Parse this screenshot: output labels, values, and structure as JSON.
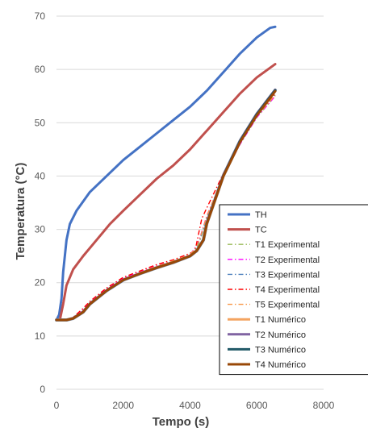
{
  "chart_data": {
    "type": "line",
    "title": "",
    "xlabel": "Tempo (s)",
    "ylabel": "Temperatura (°C)",
    "xlim": [
      0,
      8000
    ],
    "ylim": [
      0,
      70
    ],
    "xticks": [
      0,
      2000,
      4000,
      6000,
      8000
    ],
    "yticks": [
      0,
      10,
      20,
      30,
      40,
      50,
      60,
      70
    ],
    "grid": "horizontal",
    "legend_position": "right",
    "series": [
      {
        "name": "TH",
        "color": "#4472C4",
        "style": "solid",
        "width": 3,
        "points": [
          [
            0,
            13
          ],
          [
            80,
            14
          ],
          [
            150,
            17
          ],
          [
            200,
            22
          ],
          [
            300,
            28
          ],
          [
            400,
            31
          ],
          [
            600,
            33.5
          ],
          [
            1000,
            37
          ],
          [
            1500,
            40
          ],
          [
            2000,
            43
          ],
          [
            2500,
            45.5
          ],
          [
            3000,
            48
          ],
          [
            3500,
            50.5
          ],
          [
            4000,
            53
          ],
          [
            4500,
            56
          ],
          [
            5000,
            59.5
          ],
          [
            5500,
            63
          ],
          [
            6000,
            66
          ],
          [
            6400,
            67.8
          ],
          [
            6550,
            68
          ]
        ]
      },
      {
        "name": "TC",
        "color": "#C0504D",
        "style": "solid",
        "width": 3,
        "points": [
          [
            0,
            13
          ],
          [
            100,
            13
          ],
          [
            200,
            16
          ],
          [
            300,
            19.5
          ],
          [
            500,
            22.5
          ],
          [
            800,
            25
          ],
          [
            1200,
            28
          ],
          [
            1600,
            31
          ],
          [
            2000,
            33.5
          ],
          [
            2500,
            36.5
          ],
          [
            3000,
            39.5
          ],
          [
            3500,
            42
          ],
          [
            4000,
            45
          ],
          [
            4500,
            48.5
          ],
          [
            5000,
            52
          ],
          [
            5500,
            55.5
          ],
          [
            6000,
            58.5
          ],
          [
            6550,
            61
          ]
        ]
      },
      {
        "name": "T1 Experimental",
        "color": "#9BBB59",
        "style": "dashdot",
        "width": 1.4,
        "points": [
          [
            0,
            13
          ],
          [
            300,
            13
          ],
          [
            500,
            13.3
          ],
          [
            800,
            14.5
          ],
          [
            1000,
            16
          ],
          [
            1500,
            18.5
          ],
          [
            2000,
            20.5
          ],
          [
            2500,
            21.8
          ],
          [
            3000,
            23
          ],
          [
            3500,
            24
          ],
          [
            4000,
            25
          ],
          [
            4200,
            26.5
          ],
          [
            4300,
            28
          ],
          [
            4500,
            32
          ],
          [
            5000,
            40
          ],
          [
            5500,
            46
          ],
          [
            6000,
            51
          ],
          [
            6550,
            55
          ]
        ]
      },
      {
        "name": "T2 Experimental",
        "color": "#FF00FF",
        "style": "dashdot",
        "width": 1.4,
        "points": [
          [
            0,
            13
          ],
          [
            300,
            13
          ],
          [
            500,
            13.5
          ],
          [
            800,
            15
          ],
          [
            1000,
            16.3
          ],
          [
            1500,
            18.8
          ],
          [
            2000,
            20.8
          ],
          [
            2500,
            22
          ],
          [
            3000,
            23.2
          ],
          [
            3500,
            24.1
          ],
          [
            4000,
            25.2
          ],
          [
            4200,
            27
          ],
          [
            4300,
            28.5
          ],
          [
            4500,
            32.5
          ],
          [
            5000,
            40
          ],
          [
            5500,
            46
          ],
          [
            6000,
            51
          ],
          [
            6550,
            55
          ]
        ]
      },
      {
        "name": "T3 Experimental",
        "color": "#4F81BD",
        "style": "dashdot",
        "width": 1.4,
        "points": [
          [
            0,
            13
          ],
          [
            300,
            13
          ],
          [
            500,
            13.2
          ],
          [
            800,
            14.3
          ],
          [
            1000,
            15.8
          ],
          [
            1500,
            18.3
          ],
          [
            2000,
            20.3
          ],
          [
            2500,
            21.7
          ],
          [
            3000,
            22.9
          ],
          [
            3500,
            23.9
          ],
          [
            4000,
            25
          ],
          [
            4200,
            26.8
          ],
          [
            4300,
            28.2
          ],
          [
            4500,
            32.2
          ],
          [
            5000,
            40.2
          ],
          [
            5500,
            46.2
          ],
          [
            6000,
            51.2
          ],
          [
            6550,
            55.3
          ]
        ]
      },
      {
        "name": "T4 Experimental",
        "color": "#FF0000",
        "style": "dashdot",
        "width": 1.4,
        "points": [
          [
            0,
            13
          ],
          [
            300,
            13
          ],
          [
            500,
            13.5
          ],
          [
            800,
            15.2
          ],
          [
            1000,
            16.5
          ],
          [
            1500,
            19
          ],
          [
            2000,
            21
          ],
          [
            2500,
            22.2
          ],
          [
            3000,
            23.4
          ],
          [
            3500,
            24.3
          ],
          [
            4000,
            25.5
          ],
          [
            4150,
            26
          ],
          [
            4250,
            29
          ],
          [
            4350,
            32
          ],
          [
            4500,
            34
          ],
          [
            5000,
            40.5
          ],
          [
            5500,
            46.3
          ],
          [
            6000,
            51.3
          ],
          [
            6550,
            55.5
          ]
        ]
      },
      {
        "name": "T5 Experimental",
        "color": "#F79646",
        "style": "dashdot",
        "width": 1.4,
        "points": [
          [
            0,
            13
          ],
          [
            300,
            13
          ],
          [
            500,
            13.3
          ],
          [
            800,
            14.8
          ],
          [
            1000,
            16.1
          ],
          [
            1500,
            18.6
          ],
          [
            2000,
            20.6
          ],
          [
            2500,
            21.9
          ],
          [
            3000,
            23.1
          ],
          [
            3500,
            24.1
          ],
          [
            4000,
            25.2
          ],
          [
            4200,
            26.8
          ],
          [
            4300,
            28.4
          ],
          [
            4500,
            32.4
          ],
          [
            5000,
            40.3
          ],
          [
            5500,
            46.2
          ],
          [
            6000,
            51.2
          ],
          [
            6550,
            55.2
          ]
        ]
      },
      {
        "name": "T1 Numérico",
        "color": "#F4A460",
        "style": "solid",
        "width": 3,
        "points": [
          [
            0,
            13
          ],
          [
            300,
            13
          ],
          [
            500,
            13.3
          ],
          [
            800,
            14.5
          ],
          [
            1000,
            16
          ],
          [
            1500,
            18.5
          ],
          [
            2000,
            20.5
          ],
          [
            2500,
            21.7
          ],
          [
            3000,
            22.8
          ],
          [
            3500,
            23.8
          ],
          [
            4000,
            25
          ],
          [
            4200,
            26
          ],
          [
            4400,
            28
          ],
          [
            4500,
            31
          ],
          [
            5000,
            40
          ],
          [
            5500,
            46.5
          ],
          [
            6000,
            51.5
          ],
          [
            6550,
            56
          ]
        ]
      },
      {
        "name": "T2 Numérico",
        "color": "#8064A2",
        "style": "solid",
        "width": 3,
        "points": [
          [
            0,
            13
          ],
          [
            300,
            13
          ],
          [
            500,
            13.3
          ],
          [
            800,
            14.5
          ],
          [
            1000,
            16
          ],
          [
            1500,
            18.5
          ],
          [
            2000,
            20.5
          ],
          [
            2500,
            21.7
          ],
          [
            3000,
            22.8
          ],
          [
            3500,
            23.8
          ],
          [
            4000,
            25
          ],
          [
            4200,
            26
          ],
          [
            4400,
            28
          ],
          [
            4500,
            31.2
          ],
          [
            5000,
            40.2
          ],
          [
            5500,
            46.7
          ],
          [
            6000,
            51.7
          ],
          [
            6550,
            56.2
          ]
        ]
      },
      {
        "name": "T3 Numérico",
        "color": "#215967",
        "style": "solid",
        "width": 3,
        "points": [
          [
            0,
            13
          ],
          [
            300,
            13
          ],
          [
            500,
            13.3
          ],
          [
            800,
            14.5
          ],
          [
            1000,
            16
          ],
          [
            1500,
            18.5
          ],
          [
            2000,
            20.5
          ],
          [
            2500,
            21.7
          ],
          [
            3000,
            22.8
          ],
          [
            3500,
            23.8
          ],
          [
            4000,
            25
          ],
          [
            4200,
            26
          ],
          [
            4400,
            28
          ],
          [
            4500,
            31.1
          ],
          [
            5000,
            40.1
          ],
          [
            5500,
            46.6
          ],
          [
            6000,
            51.6
          ],
          [
            6550,
            56.1
          ]
        ]
      },
      {
        "name": "T4 Numérico",
        "color": "#984807",
        "style": "solid",
        "width": 3,
        "points": [
          [
            0,
            13
          ],
          [
            300,
            13
          ],
          [
            500,
            13.3
          ],
          [
            800,
            14.5
          ],
          [
            1000,
            16
          ],
          [
            1500,
            18.5
          ],
          [
            2000,
            20.5
          ],
          [
            2500,
            21.7
          ],
          [
            3000,
            22.8
          ],
          [
            3500,
            23.8
          ],
          [
            4000,
            25
          ],
          [
            4200,
            26
          ],
          [
            4400,
            28
          ],
          [
            4500,
            31
          ],
          [
            5000,
            40
          ],
          [
            5500,
            46.4
          ],
          [
            6000,
            51.4
          ],
          [
            6550,
            55.9
          ]
        ]
      },
      {
        "name": "",
        "color": "#7F8FA6",
        "style": "solid",
        "width": 4,
        "points": [
          [
            0,
            13
          ],
          [
            300,
            13
          ],
          [
            500,
            13.3
          ],
          [
            800,
            14.5
          ],
          [
            1000,
            16
          ],
          [
            1500,
            18.5
          ],
          [
            2000,
            20.5
          ],
          [
            2500,
            21.7
          ],
          [
            3000,
            22.8
          ],
          [
            3500,
            23.8
          ],
          [
            4000,
            25
          ],
          [
            4200,
            26
          ],
          [
            4400,
            28
          ],
          [
            4500,
            31.1
          ],
          [
            5000,
            40.1
          ],
          [
            5500,
            46.6
          ],
          [
            6000,
            51.6
          ],
          [
            6550,
            56.1
          ]
        ]
      }
    ]
  }
}
